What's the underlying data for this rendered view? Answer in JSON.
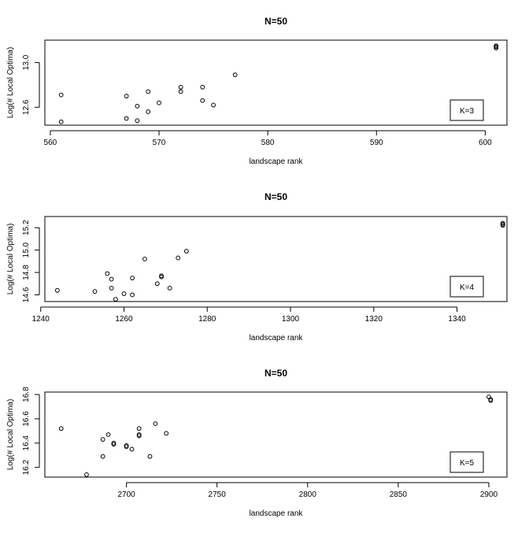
{
  "chart_data": [
    {
      "type": "scatter",
      "title": "N=50",
      "xlabel": "landscape rank",
      "ylabel": "Log(# Local Optima)",
      "legend": "K=3",
      "legend_position": "bottom-right",
      "xlim": [
        559.5,
        602
      ],
      "ylim": [
        12.44,
        13.2
      ],
      "xticks": [
        560,
        570,
        580,
        590,
        600
      ],
      "yticks": [
        12.6,
        13.0
      ],
      "grid": false,
      "points": [
        [
          561,
          12.71
        ],
        [
          561,
          12.47
        ],
        [
          567,
          12.7
        ],
        [
          567,
          12.5
        ],
        [
          568,
          12.61
        ],
        [
          568,
          12.48
        ],
        [
          569,
          12.74
        ],
        [
          569,
          12.56
        ],
        [
          570,
          12.64
        ],
        [
          572,
          12.78
        ],
        [
          572,
          12.74
        ],
        [
          574,
          12.78
        ],
        [
          574,
          12.66
        ],
        [
          575,
          12.62
        ],
        [
          577,
          12.89
        ],
        [
          601,
          13.15
        ],
        [
          601,
          13.14
        ],
        [
          601,
          13.13
        ]
      ]
    },
    {
      "type": "scatter",
      "title": "N=50",
      "xlabel": "landscape rank",
      "ylabel": "Log(# Local Optima)",
      "legend": "K=4",
      "legend_position": "bottom-right",
      "xlim": [
        1241,
        1352
      ],
      "ylim": [
        14.54,
        15.3
      ],
      "xticks": [
        1240,
        1260,
        1280,
        1300,
        1320,
        1340
      ],
      "yticks": [
        14.6,
        14.8,
        15.0,
        15.2
      ],
      "grid": false,
      "points": [
        [
          1244,
          14.64
        ],
        [
          1253,
          14.63
        ],
        [
          1256,
          14.79
        ],
        [
          1257,
          14.74
        ],
        [
          1257,
          14.66
        ],
        [
          1258,
          14.56
        ],
        [
          1260,
          14.61
        ],
        [
          1262,
          14.6
        ],
        [
          1262,
          14.75
        ],
        [
          1265,
          14.92
        ],
        [
          1268,
          14.7
        ],
        [
          1269,
          14.77
        ],
        [
          1269,
          14.76
        ],
        [
          1271,
          14.66
        ],
        [
          1273,
          14.93
        ],
        [
          1275,
          14.99
        ],
        [
          1351,
          15.24
        ],
        [
          1351,
          15.23
        ],
        [
          1351,
          15.22
        ]
      ]
    },
    {
      "type": "scatter",
      "title": "N=50",
      "xlabel": "landscape rank",
      "ylabel": "Log(# Local Optima)",
      "legend": "K=5",
      "legend_position": "bottom-right",
      "xlim": [
        2655,
        2910
      ],
      "ylim": [
        16.12,
        16.82
      ],
      "xticks": [
        2700,
        2750,
        2800,
        2850,
        2900
      ],
      "yticks": [
        16.2,
        16.4,
        16.6,
        16.8
      ],
      "grid": false,
      "points": [
        [
          2664,
          16.52
        ],
        [
          2678,
          16.14
        ],
        [
          2687,
          16.43
        ],
        [
          2687,
          16.29
        ],
        [
          2690,
          16.47
        ],
        [
          2693,
          16.4
        ],
        [
          2693,
          16.39
        ],
        [
          2700,
          16.38
        ],
        [
          2700,
          16.37
        ],
        [
          2703,
          16.35
        ],
        [
          2707,
          16.52
        ],
        [
          2707,
          16.47
        ],
        [
          2707,
          16.46
        ],
        [
          2713,
          16.29
        ],
        [
          2716,
          16.56
        ],
        [
          2722,
          16.48
        ],
        [
          2900,
          16.78
        ],
        [
          2901,
          16.76
        ],
        [
          2901,
          16.75
        ]
      ]
    }
  ]
}
